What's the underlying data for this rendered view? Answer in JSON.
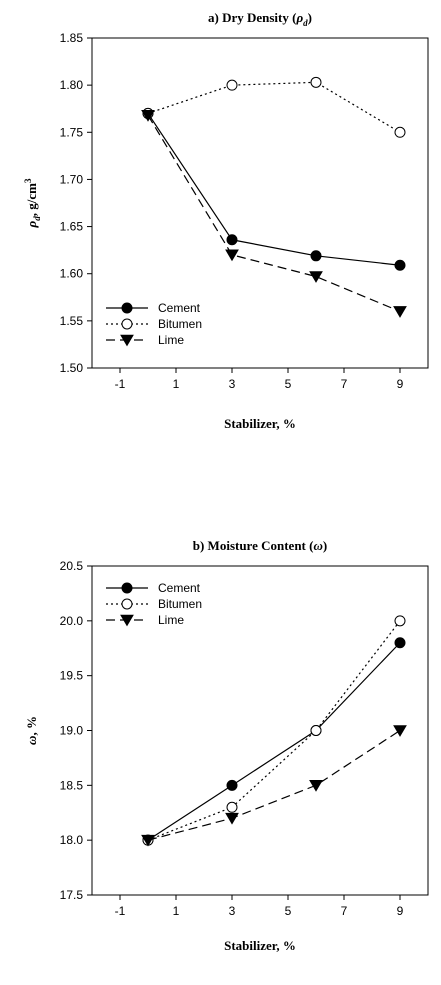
{
  "chart_data": [
    {
      "type": "line",
      "title": "a) Dry Density (",
      "title_symbol": "ρ",
      "title_sub": "d",
      "title_close": ")",
      "ylabel_symbol": "ρ",
      "ylabel_sub": "d",
      "ylabel_rest": ", g/cm",
      "ylabel_sup": "3",
      "xlabel": "Stabilizer, %",
      "xlim": [
        -2,
        10
      ],
      "ylim": [
        1.5,
        1.85
      ],
      "xticks": [
        -1,
        1,
        3,
        5,
        7,
        9
      ],
      "xtick_labels": [
        "-1",
        "1",
        "3",
        "5",
        "7",
        "9"
      ],
      "yticks": [
        1.5,
        1.55,
        1.6,
        1.65,
        1.7,
        1.75,
        1.8,
        1.85
      ],
      "ytick_labels": [
        "1.50",
        "1.55",
        "1.60",
        "1.65",
        "1.70",
        "1.75",
        "1.80",
        "1.85"
      ],
      "legend_position": "bottom-left",
      "series": [
        {
          "name": "Cement",
          "x": [
            0,
            3,
            6,
            9
          ],
          "values": [
            1.77,
            1.636,
            1.619,
            1.609
          ],
          "marker": "filled-circle",
          "line": "solid"
        },
        {
          "name": "Bitumen",
          "x": [
            0,
            3,
            6,
            9
          ],
          "values": [
            1.77,
            1.8,
            1.803,
            1.75
          ],
          "marker": "open-circle",
          "line": "dotted"
        },
        {
          "name": "Lime",
          "x": [
            0,
            3,
            6,
            9
          ],
          "values": [
            1.768,
            1.62,
            1.597,
            1.56
          ],
          "marker": "filled-triangle-down",
          "line": "dashed"
        }
      ]
    },
    {
      "type": "line",
      "title": "b) Moisture Content (",
      "title_symbol": "ω",
      "title_sub": "",
      "title_close": ")",
      "ylabel_symbol": "ω",
      "ylabel_sub": "",
      "ylabel_rest": ", %",
      "ylabel_sup": "",
      "xlabel": "Stabilizer, %",
      "xlim": [
        -2,
        10
      ],
      "ylim": [
        17.5,
        20.5
      ],
      "xticks": [
        -1,
        1,
        3,
        5,
        7,
        9
      ],
      "xtick_labels": [
        "-1",
        "1",
        "3",
        "5",
        "7",
        "9"
      ],
      "yticks": [
        17.5,
        18.0,
        18.5,
        19.0,
        19.5,
        20.0,
        20.5
      ],
      "ytick_labels": [
        "17.5",
        "18.0",
        "18.5",
        "19.0",
        "19.5",
        "20.0",
        "20.5"
      ],
      "legend_position": "top-left",
      "series": [
        {
          "name": "Cement",
          "x": [
            0,
            3,
            6,
            9
          ],
          "values": [
            18.0,
            18.5,
            19.0,
            19.8
          ],
          "marker": "filled-circle",
          "line": "solid"
        },
        {
          "name": "Bitumen",
          "x": [
            0,
            3,
            6,
            9
          ],
          "values": [
            18.0,
            18.3,
            19.0,
            20.0
          ],
          "marker": "open-circle",
          "line": "dotted"
        },
        {
          "name": "Lime",
          "x": [
            0,
            3,
            6,
            9
          ],
          "values": [
            18.0,
            18.2,
            18.5,
            19.0
          ],
          "marker": "filled-triangle-down",
          "line": "dashed"
        }
      ]
    }
  ]
}
